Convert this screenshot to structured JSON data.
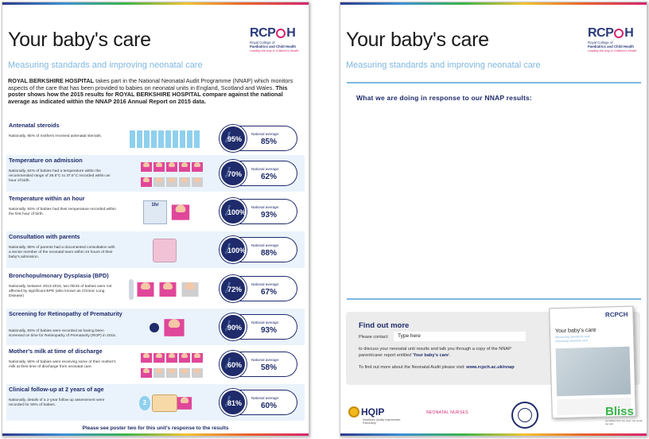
{
  "poster1": {
    "title": "Your baby's care",
    "subtitle": "Measuring standards and improving neonatal care",
    "logo": {
      "word_left": "RCP",
      "word_right": "H",
      "line1": "Royal College of",
      "line2": "Paediatrics and Child Health",
      "tagline": "Leading the way in Children's Health"
    },
    "intro": {
      "hospital": "ROYAL BERKSHIRE HOSPITAL",
      "part1": " takes part in the National Neonatal Audit Programme (NNAP) which monitors aspects of the care that has been provided to babies on neonatal units in England, Scotland and Wales. ",
      "part2_bold": "This poster shows how the 2015 results for ROYAL BERKSHIRE HOSPITAL compare against the national average as indicated within the NNAP 2016 Annual Report on 2015 data."
    },
    "unit_label": "Our unit",
    "national_label": "National average:",
    "measures": [
      {
        "title": "Antenatal steroids",
        "text": "Nationally, 85% of mothers received antenatal steroids.",
        "unit": "95%",
        "national": "85%",
        "unit_fraction": 0.95,
        "national_fraction": 0.85
      },
      {
        "title": "Temperature on admission",
        "text": "Nationally, 62% of babies had a temperature within the recommended range of 36.5°C to 37.5°C recorded within an hour of birth.",
        "unit": "70%",
        "national": "62%",
        "unit_fraction": 0.7,
        "national_fraction": 0.62
      },
      {
        "title": "Temperature within an hour",
        "text": "Nationally, 93% of babies had their temperature recorded within the first hour of birth.",
        "unit": "100%",
        "national": "93%",
        "unit_fraction": 1.0,
        "national_fraction": 0.93,
        "illus_label": "1hr"
      },
      {
        "title": "Consultation with parents",
        "text": "Nationally, 88% of parents had a documented consultation with a senior member of the neonatal team within 24 hours of their baby's admission.",
        "unit": "100%",
        "national": "88%",
        "unit_fraction": 1.0,
        "national_fraction": 0.88
      },
      {
        "title": "Bronchopulmonary Dysplasia (BPD)",
        "text": "Nationally, between 2013-2015, two thirds of babies were not affected by significant BPD (also known as Chronic Lung Disease)",
        "unit": "72%",
        "national": "67%",
        "unit_fraction": 0.72,
        "national_fraction": 0.67
      },
      {
        "title": "Screening for Retinopathy of Prematurity",
        "text": "Nationally, 93% of babies were recorded as having been screened on time for Retinopathy of Prematurity (ROP) in 2015.",
        "unit": "90%",
        "national": "93%",
        "unit_fraction": 0.9,
        "national_fraction": 0.93
      },
      {
        "title": "Mother's milk at time of discharge",
        "text": "Nationally, 58% of babies were receiving some of their mother's milk at their time of discharge from neonatal care.",
        "unit": "60%",
        "national": "58%",
        "unit_fraction": 0.6,
        "national_fraction": 0.58
      },
      {
        "title": "Clinical follow-up at 2 years of age",
        "text": "Nationally, details of a 2-year follow up assessment were recorded for 60% of babies.",
        "unit": "81%",
        "national": "60%",
        "unit_fraction": 0.81,
        "national_fraction": 0.6,
        "illus_label": "2"
      }
    ],
    "footer_note": "Please see poster two for this unit's response to the results"
  },
  "poster2": {
    "title": "Your baby's care",
    "subtitle": "Measuring standards and improving neonatal care",
    "response_label": "What we are doing in response to our NNAP results:",
    "find_out": {
      "title": "Find out more",
      "contact_label": "Please contact:",
      "contact_value": "Type here",
      "line1": "to discuss your neonatal unit results and talk you through a copy of the NNAP",
      "line2_pre": "parent/carer report entitled '",
      "line2_bold": "Your baby's care",
      "line2_post": "'.",
      "line3_pre": "To find out more about the Neonatal Audit please visit: ",
      "line3_bold": "www.rcpch.ac.uk/nnap"
    },
    "booklet": {
      "logo": "RCPCH",
      "title": "Your baby's care",
      "subtitle": "Measuring standards and improving neonatal care"
    },
    "sponsors": {
      "hqip": "HQIP",
      "hqip_sub": "Healthcare Quality Improvement Partnership",
      "neonet": "NEONATAL NURSES",
      "bliss": "Bliss",
      "bliss_sub": "for babies born too soon, too small, too sick"
    }
  },
  "colors": {
    "navy": "#1f2b6b",
    "light_blue": "#7fb7df",
    "pink": "#d6246e",
    "figure_blue": "#8fd0ee",
    "row_alt": "#eaf3fb"
  }
}
